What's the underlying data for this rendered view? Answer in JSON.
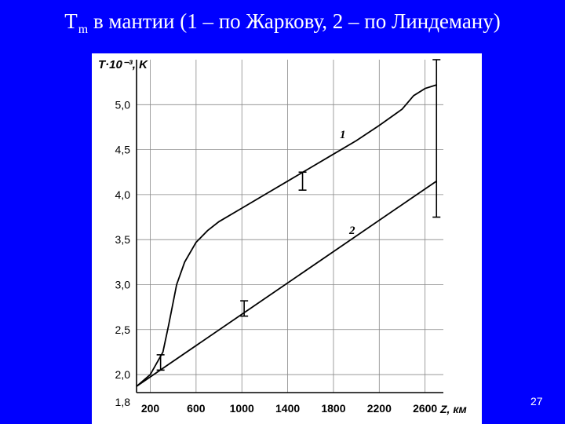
{
  "slide": {
    "title_main": "T",
    "title_sub": "m",
    "title_rest": " в мантии (1 – по Жаркову, 2 – по Линдеману)",
    "page_number": "27"
  },
  "chart_data": {
    "type": "line",
    "ylabel": "T·10⁻³, K",
    "xlabel": "Z, км",
    "xlim": [
      80,
      2760
    ],
    "ylim": [
      1.8,
      5.5
    ],
    "x_ticks": [
      200,
      600,
      1000,
      1400,
      1800,
      2200,
      2600
    ],
    "x_tick_labels": [
      "200",
      "600",
      "1000",
      "1400",
      "1800",
      "2200",
      "2600"
    ],
    "y_ticks": [
      2.0,
      2.5,
      3.0,
      3.5,
      4.0,
      4.5,
      5.0
    ],
    "y_tick_labels": [
      "2,0",
      "2,5",
      "3,0",
      "3,5",
      "4,0",
      "4,5",
      "5,0"
    ],
    "y_bottom_label": "1,8",
    "grid": true,
    "series": [
      {
        "name": "1",
        "x": [
          80,
          200,
          310,
          360,
          430,
          500,
          600,
          700,
          800,
          1000,
          1200,
          1400,
          1600,
          1800,
          2000,
          2200,
          2400,
          2500,
          2600,
          2700
        ],
        "y": [
          1.87,
          2.0,
          2.25,
          2.55,
          3.0,
          3.25,
          3.47,
          3.6,
          3.7,
          3.85,
          4.0,
          4.15,
          4.3,
          4.45,
          4.6,
          4.77,
          4.95,
          5.1,
          5.18,
          5.22
        ]
      },
      {
        "name": "2",
        "x": [
          80,
          2700
        ],
        "y": [
          1.87,
          4.15
        ]
      }
    ],
    "error_bars": [
      {
        "x": 290,
        "ymin": 2.05,
        "ymax": 2.22
      },
      {
        "x": 1020,
        "ymin": 2.65,
        "ymax": 2.82
      },
      {
        "x": 1530,
        "ymin": 4.05,
        "ymax": 4.25
      },
      {
        "x": 2700,
        "ymin": 3.75,
        "ymax": 5.5
      }
    ]
  }
}
